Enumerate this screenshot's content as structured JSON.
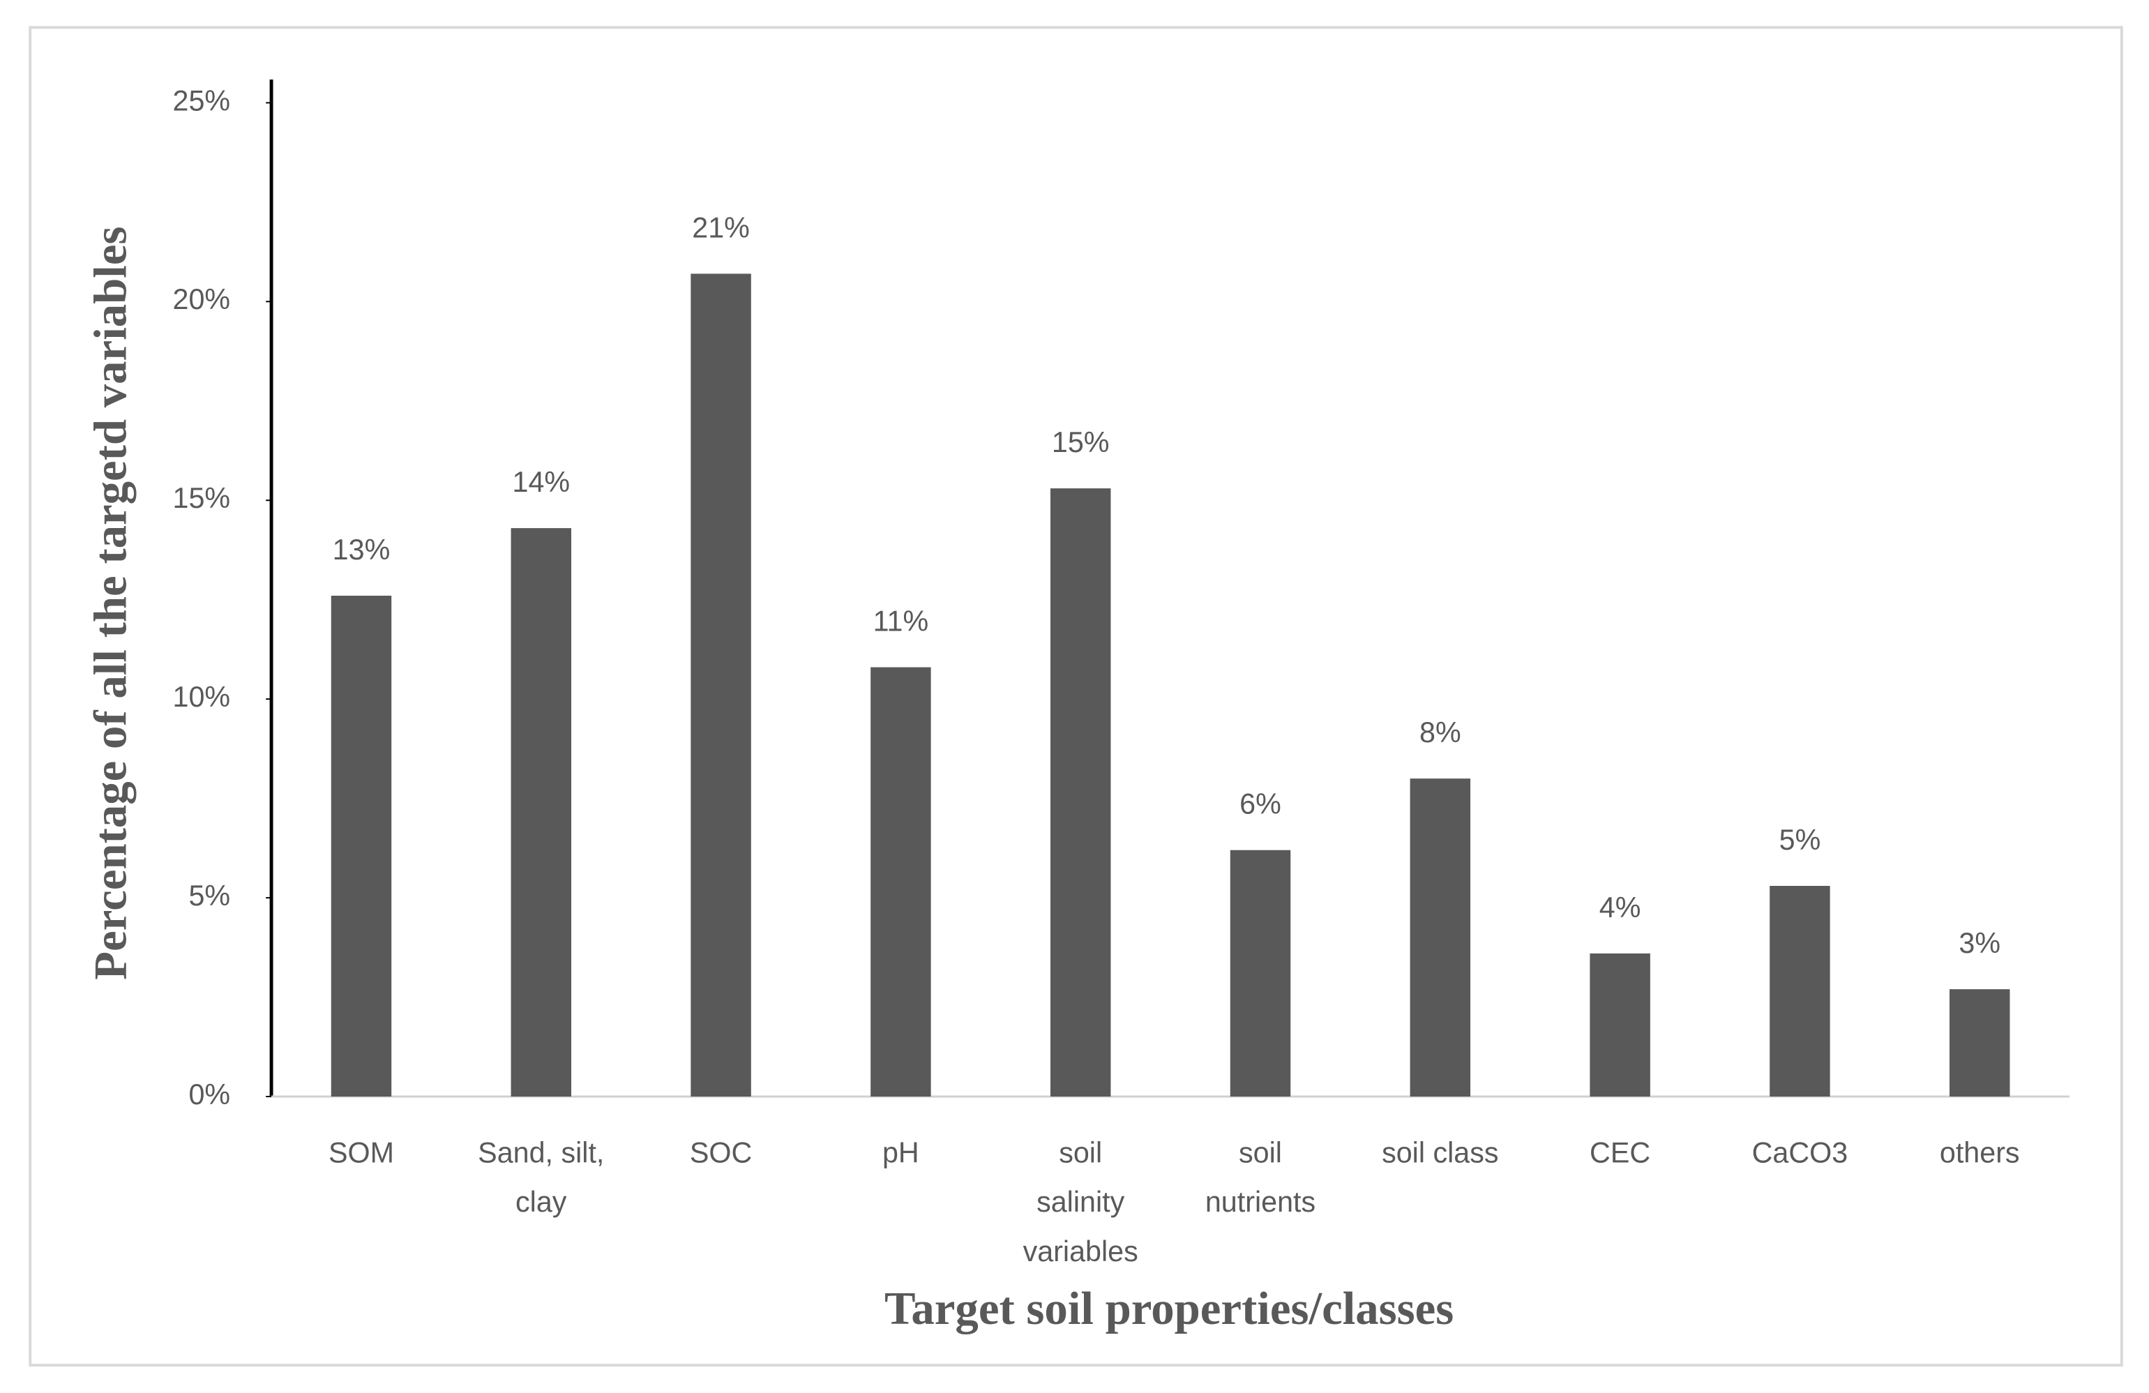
{
  "chart_data": {
    "type": "bar",
    "x_label": "Target soil properties/classes",
    "y_label": "Percentage of all the targetd variables",
    "categories": [
      "SOM",
      "Sand, silt, clay",
      "SOC",
      "pH",
      "soil salinity variables",
      "soil nutrients",
      "soil class",
      "CEC",
      "CaCO3",
      "others"
    ],
    "values": [
      12.6,
      14.3,
      20.7,
      10.8,
      15.3,
      6.2,
      8.0,
      3.6,
      5.3,
      2.7
    ],
    "value_labels": [
      "13%",
      "14%",
      "21%",
      "11%",
      "15%",
      "6%",
      "8%",
      "4%",
      "5%",
      "3%"
    ],
    "color": "#595959",
    "ylim": [
      0,
      25
    ],
    "yticks": [
      {
        "value": 0,
        "label": "0%"
      },
      {
        "value": 5,
        "label": "5%"
      },
      {
        "value": 10,
        "label": "10%"
      },
      {
        "value": 15,
        "label": "15%"
      },
      {
        "value": 20,
        "label": "20%"
      },
      {
        "value": 25,
        "label": "25%"
      }
    ],
    "grid": false
  }
}
